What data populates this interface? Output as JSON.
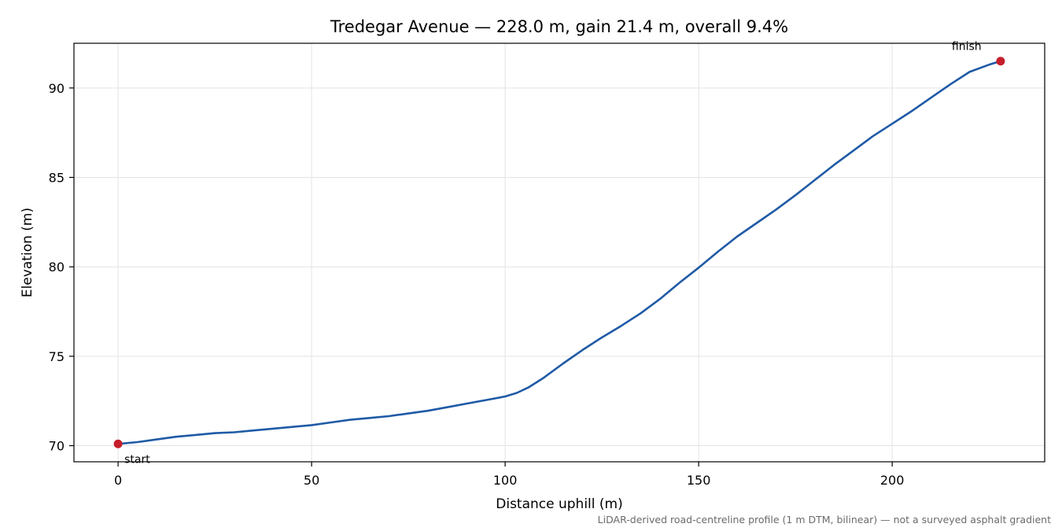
{
  "chart_data": {
    "type": "line",
    "title": "Tredegar Avenue — 228.0 m, gain 21.4 m, overall 9.4%",
    "xlabel": "Distance uphill (m)",
    "ylabel": "Elevation (m)",
    "xlim": [
      -11.4,
      239.4
    ],
    "ylim": [
      69.1,
      92.5
    ],
    "xticks": [
      0,
      50,
      100,
      150,
      200
    ],
    "yticks": [
      70,
      75,
      80,
      85,
      90
    ],
    "grid": true,
    "series": [
      {
        "color": "#1f5aa6",
        "x": [
          0,
          5,
          10,
          15,
          20,
          25,
          30,
          35,
          40,
          45,
          50,
          55,
          60,
          65,
          70,
          75,
          80,
          85,
          90,
          95,
          100,
          103,
          106,
          110,
          115,
          120,
          125,
          130,
          135,
          140,
          145,
          150,
          155,
          160,
          165,
          170,
          175,
          180,
          185,
          190,
          195,
          200,
          205,
          210,
          215,
          220,
          225,
          228
        ],
        "y": [
          70.1,
          70.2,
          70.35,
          70.5,
          70.6,
          70.7,
          70.75,
          70.85,
          70.95,
          71.05,
          71.15,
          71.3,
          71.45,
          71.55,
          71.65,
          71.8,
          71.95,
          72.15,
          72.35,
          72.55,
          72.75,
          72.95,
          73.25,
          73.8,
          74.6,
          75.35,
          76.05,
          76.7,
          77.4,
          78.2,
          79.1,
          79.95,
          80.85,
          81.7,
          82.45,
          83.2,
          84.0,
          84.85,
          85.7,
          86.5,
          87.3,
          88.0,
          88.7,
          89.45,
          90.2,
          90.9,
          91.3,
          91.5
        ]
      }
    ],
    "markers": [
      {
        "label": "start",
        "x": 0,
        "y": 70.1,
        "color": "#c41e2a"
      },
      {
        "label": "finish",
        "x": 228,
        "y": 91.5,
        "color": "#c41e2a"
      }
    ],
    "footnote": "LiDAR-derived road-centreline profile (1 m DTM, bilinear) — not a surveyed asphalt gradient"
  }
}
